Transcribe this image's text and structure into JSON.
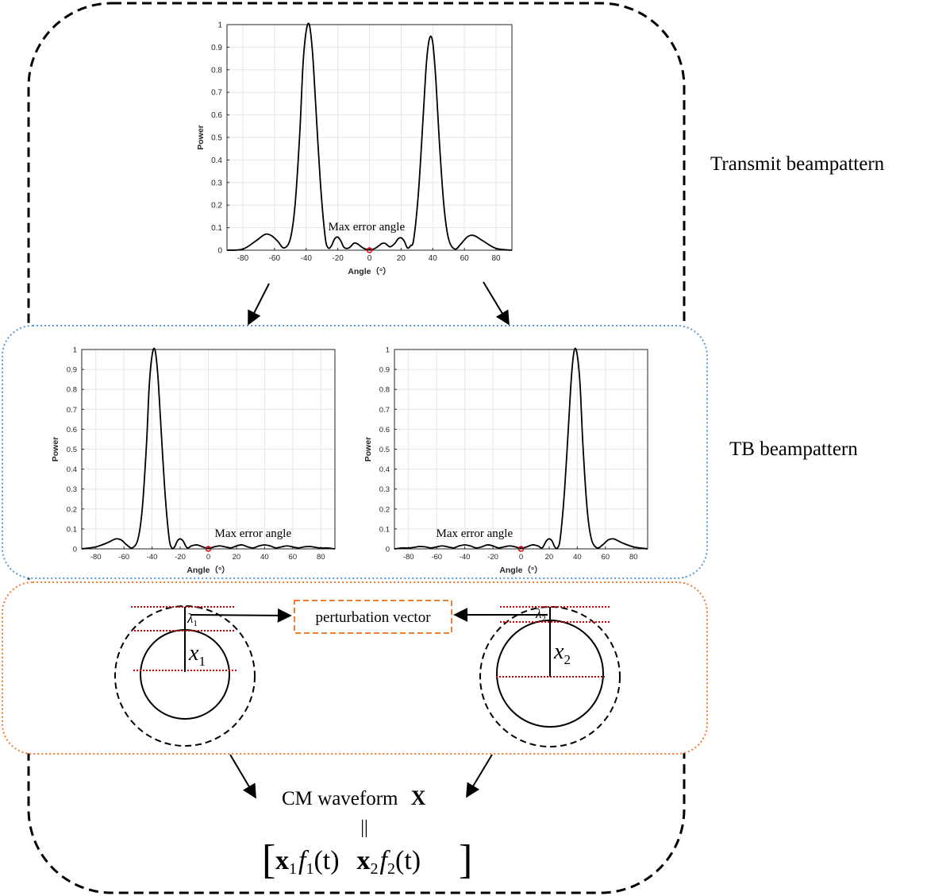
{
  "section_labels": {
    "transmit": "Transmit beampattern",
    "tb": "TB beampattern"
  },
  "perturbation_label": "perturbation vector",
  "max_error_label": "Max error angle",
  "cm_waveform": {
    "text": "CM waveform",
    "symbol": "X"
  },
  "equality_sign": "||",
  "formula": {
    "x1": "x",
    "x1_sub": "1",
    "f1": "f",
    "f1_sub": "1",
    "f1_arg": "(t)",
    "x2": "x",
    "x2_sub": "2",
    "f2": "f",
    "f2_sub": "2",
    "f2_arg": "(t)"
  },
  "circles": [
    {
      "var": "x",
      "sub": "1",
      "lambda": "λ",
      "lambda_sub": "1"
    },
    {
      "var": "x",
      "sub": "2",
      "lambda": "λ",
      "lambda_sub": "2"
    }
  ],
  "colors": {
    "outer_border": "#000000",
    "tb_border": "#5b9bd5",
    "circle_box_border": "#ed7d31",
    "perturbation_box_border": "#ed7d31",
    "dotted_lines": "#d00000",
    "error_marker": "#e00000",
    "curve": "#000000",
    "grid": "#e6e6e6"
  },
  "chart_data": [
    {
      "type": "line",
      "title": "",
      "xlabel": "Angle（°）",
      "ylabel": "Power",
      "xlim": [
        -90,
        90
      ],
      "ylim": [
        0,
        1
      ],
      "xticks": [
        -80,
        -60,
        -40,
        -20,
        0,
        20,
        40,
        60,
        80
      ],
      "yticks": [
        0,
        0.1,
        0.2,
        0.3,
        0.4,
        0.5,
        0.6,
        0.7,
        0.8,
        0.9,
        1
      ],
      "grid": true,
      "annotation": {
        "text": "Max error angle",
        "x": 0,
        "y": 0
      },
      "series": [
        {
          "x": [
            -90,
            -80,
            -72,
            -66,
            -62,
            -58,
            -54,
            -50,
            -47,
            -44,
            -42,
            -40,
            -38,
            -36,
            -34,
            -31,
            -28,
            -26,
            -24,
            -22,
            -20,
            -18,
            -16,
            -13,
            -10,
            -8,
            -6,
            -4,
            -2,
            0,
            2,
            4,
            6,
            8,
            10,
            13,
            16,
            18,
            20,
            22,
            24,
            26,
            28,
            31,
            34,
            36,
            38,
            40,
            42,
            44,
            47,
            50,
            54,
            58,
            62,
            66,
            72,
            80,
            90
          ],
          "y": [
            0,
            0.005,
            0.04,
            0.07,
            0.065,
            0.04,
            0.01,
            0.05,
            0.2,
            0.52,
            0.82,
            0.97,
            1.0,
            0.88,
            0.65,
            0.3,
            0.06,
            0.01,
            0.02,
            0.05,
            0.058,
            0.04,
            0.012,
            0.01,
            0.03,
            0.03,
            0.02,
            0.01,
            0.004,
            0.002,
            0.004,
            0.01,
            0.02,
            0.03,
            0.03,
            0.015,
            0.03,
            0.05,
            0.055,
            0.04,
            0.01,
            0.02,
            0.05,
            0.26,
            0.6,
            0.83,
            0.94,
            0.92,
            0.75,
            0.5,
            0.2,
            0.05,
            0.005,
            0.03,
            0.06,
            0.065,
            0.04,
            0.008,
            0
          ]
        }
      ]
    },
    {
      "type": "line",
      "title": "",
      "xlabel": "Angle（°）",
      "ylabel": "Power",
      "xlim": [
        -90,
        90
      ],
      "ylim": [
        0,
        1
      ],
      "xticks": [
        -80,
        -60,
        -40,
        -20,
        0,
        20,
        40,
        60,
        80
      ],
      "yticks": [
        0,
        0.1,
        0.2,
        0.3,
        0.4,
        0.5,
        0.6,
        0.7,
        0.8,
        0.9,
        1
      ],
      "grid": true,
      "annotation": {
        "text": "Max error angle",
        "x": 0,
        "y": 0
      },
      "series": [
        {
          "x": [
            -90,
            -80,
            -72,
            -66,
            -62,
            -58,
            -54,
            -50,
            -47,
            -44,
            -42,
            -40,
            -38,
            -36,
            -34,
            -31,
            -28,
            -26,
            -24,
            -22,
            -20,
            -18,
            -15,
            -12,
            -8,
            -4,
            0,
            4,
            8,
            12,
            16,
            20,
            24,
            28,
            32,
            36,
            40,
            44,
            48,
            52,
            56,
            60,
            64,
            68,
            72,
            76,
            80,
            84,
            90
          ],
          "y": [
            0,
            0.01,
            0.03,
            0.05,
            0.045,
            0.02,
            0.005,
            0.05,
            0.2,
            0.52,
            0.82,
            0.97,
            1.0,
            0.88,
            0.65,
            0.3,
            0.06,
            0.005,
            0.01,
            0.04,
            0.05,
            0.04,
            0.005,
            0.015,
            0.02,
            0.01,
            0.002,
            0.01,
            0.015,
            0.01,
            0.005,
            0.015,
            0.02,
            0.01,
            0.005,
            0.015,
            0.02,
            0.015,
            0.005,
            0.01,
            0.015,
            0.01,
            0.005,
            0.01,
            0.012,
            0.008,
            0.004,
            0.005,
            0
          ]
        }
      ]
    },
    {
      "type": "line",
      "title": "",
      "xlabel": "Angle（°）",
      "ylabel": "Power",
      "xlim": [
        -90,
        90
      ],
      "ylim": [
        0,
        1
      ],
      "xticks": [
        -80,
        -60,
        -40,
        -20,
        0,
        20,
        40,
        60,
        80
      ],
      "yticks": [
        0,
        0.1,
        0.2,
        0.3,
        0.4,
        0.5,
        0.6,
        0.7,
        0.8,
        0.9,
        1
      ],
      "grid": true,
      "annotation": {
        "text": "Max error angle",
        "x": 0,
        "y": 0
      },
      "series": [
        {
          "x": [
            -90,
            -84,
            -80,
            -76,
            -72,
            -68,
            -64,
            -60,
            -56,
            -52,
            -48,
            -44,
            -40,
            -36,
            -32,
            -28,
            -24,
            -20,
            -16,
            -12,
            -8,
            -4,
            0,
            4,
            8,
            12,
            15,
            18,
            20,
            22,
            24,
            26,
            28,
            31,
            34,
            36,
            38,
            40,
            42,
            44,
            47,
            50,
            54,
            58,
            62,
            66,
            72,
            80,
            90
          ],
          "y": [
            0,
            0.005,
            0.004,
            0.008,
            0.012,
            0.01,
            0.005,
            0.01,
            0.015,
            0.01,
            0.005,
            0.015,
            0.02,
            0.015,
            0.005,
            0.01,
            0.02,
            0.015,
            0.005,
            0.01,
            0.015,
            0.01,
            0.002,
            0.01,
            0.02,
            0.015,
            0.005,
            0.04,
            0.05,
            0.04,
            0.01,
            0.005,
            0.06,
            0.3,
            0.65,
            0.88,
            1.0,
            0.97,
            0.82,
            0.52,
            0.2,
            0.05,
            0.005,
            0.02,
            0.045,
            0.05,
            0.03,
            0.01,
            0
          ]
        }
      ]
    }
  ]
}
